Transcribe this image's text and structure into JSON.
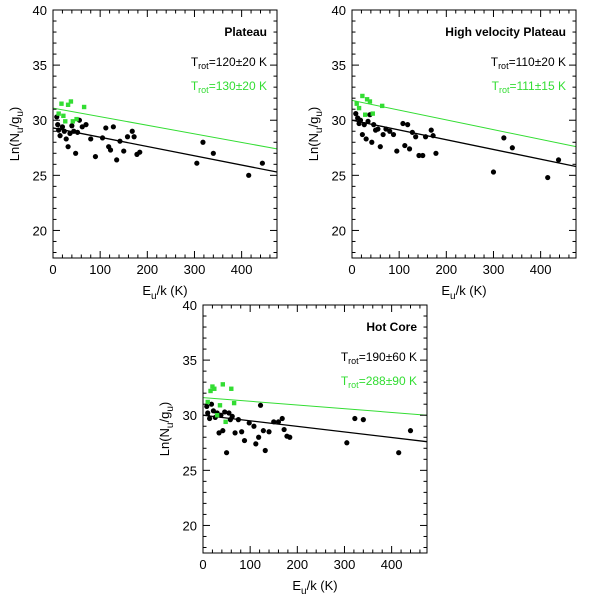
{
  "chart_data": [
    {
      "type": "scatter",
      "title": "Plateau",
      "xlabel": {
        "main": "E",
        "sub": "u",
        "rest": "/k (K)"
      },
      "ylabel": {
        "p1": "Ln(N",
        "s1": "u",
        "p2": "/g",
        "s2": "u",
        "p3": ")"
      },
      "xlim": [
        0,
        475
      ],
      "ylim": [
        17.5,
        40
      ],
      "xticks": [
        0,
        100,
        200,
        300,
        400
      ],
      "yticks": [
        20,
        25,
        30,
        35,
        40
      ],
      "grid": false,
      "annotations": [
        {
          "pre": "T",
          "sub": "rot",
          "post": "=120±20 K",
          "color": "#000000"
        },
        {
          "pre": "T",
          "sub": "rot",
          "post": "=130±20 K",
          "color": "#33dd33"
        }
      ],
      "series": [
        {
          "color": "#000000",
          "marker": "circle",
          "points": [
            [
              8,
              30.3
            ],
            [
              10,
              29.6
            ],
            [
              12,
              29.1
            ],
            [
              15,
              28.6
            ],
            [
              20,
              29.4
            ],
            [
              24,
              29.0
            ],
            [
              28,
              28.3
            ],
            [
              32,
              27.6
            ],
            [
              36,
              28.8
            ],
            [
              40,
              29.5
            ],
            [
              44,
              29.0
            ],
            [
              48,
              27.0
            ],
            [
              52,
              28.9
            ],
            [
              56,
              30.0
            ],
            [
              62,
              29.4
            ],
            [
              70,
              29.6
            ],
            [
              80,
              28.3
            ],
            [
              90,
              26.7
            ],
            [
              105,
              28.4
            ],
            [
              112,
              29.3
            ],
            [
              118,
              27.6
            ],
            [
              122,
              27.3
            ],
            [
              128,
              29.4
            ],
            [
              135,
              26.4
            ],
            [
              142,
              28.1
            ],
            [
              150,
              27.2
            ],
            [
              158,
              28.5
            ],
            [
              168,
              29.0
            ],
            [
              172,
              28.5
            ],
            [
              178,
              26.9
            ],
            [
              184,
              27.1
            ],
            [
              305,
              26.1
            ],
            [
              318,
              28.0
            ],
            [
              340,
              27.0
            ],
            [
              415,
              25.0
            ],
            [
              444,
              26.1
            ]
          ]
        },
        {
          "color": "#33dd33",
          "marker": "square",
          "points": [
            [
              12,
              30.6
            ],
            [
              18,
              31.5
            ],
            [
              22,
              30.4
            ],
            [
              26,
              29.9
            ],
            [
              32,
              31.4
            ],
            [
              38,
              31.7
            ],
            [
              42,
              29.9
            ],
            [
              50,
              30.1
            ],
            [
              66,
              31.2
            ]
          ]
        }
      ],
      "fits": [
        {
          "color": "#000000",
          "x": [
            0,
            475
          ],
          "y": [
            29.3,
            25.3
          ]
        },
        {
          "color": "#33dd33",
          "x": [
            0,
            475
          ],
          "y": [
            31.1,
            27.4
          ]
        }
      ]
    },
    {
      "type": "scatter",
      "title": "High velocity Plateau",
      "xlabel": {
        "main": "E",
        "sub": "u",
        "rest": "/k (K)"
      },
      "ylabel": {
        "p1": "Ln(N",
        "s1": "u",
        "p2": "/g",
        "s2": "u",
        "p3": ")"
      },
      "xlim": [
        0,
        475
      ],
      "ylim": [
        17.5,
        40
      ],
      "xticks": [
        0,
        100,
        200,
        300,
        400
      ],
      "yticks": [
        20,
        25,
        30,
        35,
        40
      ],
      "grid": false,
      "annotations": [
        {
          "pre": "T",
          "sub": "rot",
          "post": "=110±20 K",
          "color": "#000000"
        },
        {
          "pre": "T",
          "sub": "rot",
          "post": "=111±15 K",
          "color": "#33dd33"
        }
      ],
      "series": [
        {
          "color": "#000000",
          "marker": "circle",
          "points": [
            [
              8,
              30.6
            ],
            [
              12,
              30.2
            ],
            [
              15,
              29.7
            ],
            [
              18,
              30.0
            ],
            [
              22,
              28.7
            ],
            [
              26,
              29.6
            ],
            [
              30,
              28.3
            ],
            [
              34,
              29.9
            ],
            [
              38,
              30.5
            ],
            [
              42,
              28.0
            ],
            [
              46,
              29.6
            ],
            [
              50,
              29.1
            ],
            [
              55,
              29.2
            ],
            [
              60,
              27.6
            ],
            [
              66,
              28.7
            ],
            [
              72,
              29.2
            ],
            [
              80,
              29.0
            ],
            [
              88,
              28.7
            ],
            [
              95,
              27.2
            ],
            [
              108,
              29.7
            ],
            [
              112,
              27.7
            ],
            [
              118,
              29.6
            ],
            [
              122,
              27.4
            ],
            [
              128,
              28.9
            ],
            [
              135,
              28.5
            ],
            [
              142,
              26.8
            ],
            [
              150,
              26.8
            ],
            [
              156,
              28.5
            ],
            [
              168,
              29.1
            ],
            [
              172,
              28.6
            ],
            [
              178,
              27.0
            ],
            [
              300,
              25.3
            ],
            [
              322,
              28.4
            ],
            [
              340,
              27.5
            ],
            [
              415,
              24.8
            ],
            [
              438,
              26.4
            ]
          ]
        },
        {
          "color": "#33dd33",
          "marker": "square",
          "points": [
            [
              10,
              31.5
            ],
            [
              15,
              31.1
            ],
            [
              22,
              32.2
            ],
            [
              28,
              30.5
            ],
            [
              32,
              31.9
            ],
            [
              38,
              31.7
            ],
            [
              44,
              30.6
            ],
            [
              64,
              31.3
            ]
          ]
        }
      ],
      "fits": [
        {
          "color": "#000000",
          "x": [
            0,
            475
          ],
          "y": [
            30.0,
            25.8
          ]
        },
        {
          "color": "#33dd33",
          "x": [
            0,
            475
          ],
          "y": [
            31.8,
            27.6
          ]
        }
      ]
    },
    {
      "type": "scatter",
      "title": "Hot Core",
      "xlabel": {
        "main": "E",
        "sub": "u",
        "rest": "/k (K)"
      },
      "ylabel": {
        "p1": "Ln(N",
        "s1": "u",
        "p2": "/g",
        "s2": "u",
        "p3": ")"
      },
      "xlim": [
        0,
        475
      ],
      "ylim": [
        17.5,
        40
      ],
      "xticks": [
        0,
        100,
        200,
        300,
        400
      ],
      "yticks": [
        20,
        25,
        30,
        35,
        40
      ],
      "grid": false,
      "annotations": [
        {
          "pre": "T",
          "sub": "rot",
          "post": "=190±60 K",
          "color": "#000000"
        },
        {
          "pre": "T",
          "sub": "rot",
          "post": "=288±90 K",
          "color": "#33dd33"
        }
      ],
      "series": [
        {
          "color": "#000000",
          "marker": "circle",
          "points": [
            [
              8,
              30.8
            ],
            [
              10,
              30.2
            ],
            [
              14,
              29.7
            ],
            [
              18,
              31.0
            ],
            [
              22,
              30.4
            ],
            [
              26,
              29.8
            ],
            [
              30,
              30.2
            ],
            [
              34,
              28.4
            ],
            [
              38,
              30.0
            ],
            [
              42,
              28.6
            ],
            [
              46,
              30.3
            ],
            [
              50,
              26.6
            ],
            [
              55,
              30.2
            ],
            [
              58,
              29.6
            ],
            [
              62,
              29.9
            ],
            [
              68,
              28.4
            ],
            [
              75,
              29.6
            ],
            [
              82,
              28.5
            ],
            [
              88,
              27.7
            ],
            [
              98,
              29.3
            ],
            [
              108,
              29.0
            ],
            [
              112,
              27.4
            ],
            [
              118,
              28.0
            ],
            [
              122,
              30.9
            ],
            [
              128,
              28.6
            ],
            [
              132,
              26.8
            ],
            [
              140,
              28.5
            ],
            [
              150,
              29.4
            ],
            [
              160,
              29.4
            ],
            [
              168,
              29.7
            ],
            [
              172,
              28.7
            ],
            [
              178,
              28.1
            ],
            [
              184,
              28.0
            ],
            [
              305,
              27.5
            ],
            [
              322,
              29.7
            ],
            [
              340,
              29.6
            ],
            [
              415,
              26.6
            ],
            [
              440,
              28.6
            ]
          ]
        },
        {
          "color": "#33dd33",
          "marker": "square",
          "points": [
            [
              10,
              31.2
            ],
            [
              16,
              32.2
            ],
            [
              20,
              32.6
            ],
            [
              24,
              32.4
            ],
            [
              30,
              30.0
            ],
            [
              36,
              30.9
            ],
            [
              42,
              32.8
            ],
            [
              48,
              29.4
            ],
            [
              60,
              32.4
            ],
            [
              66,
              31.1
            ]
          ]
        }
      ],
      "fits": [
        {
          "color": "#000000",
          "x": [
            0,
            475
          ],
          "y": [
            30.0,
            27.6
          ]
        },
        {
          "color": "#33dd33",
          "x": [
            0,
            475
          ],
          "y": [
            31.6,
            30.0
          ]
        }
      ]
    }
  ]
}
